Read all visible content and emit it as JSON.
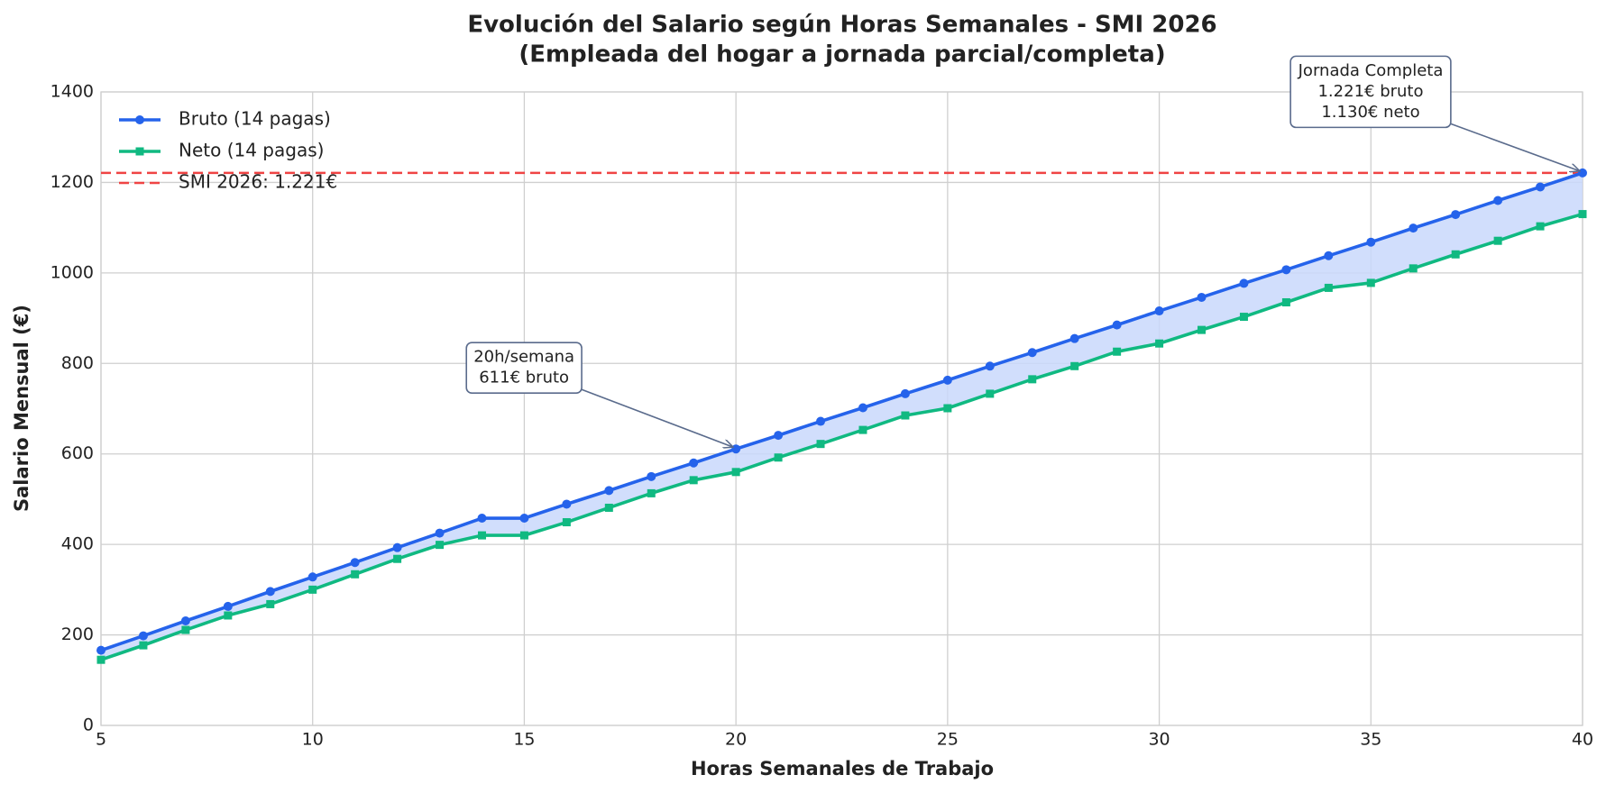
{
  "chart_data": {
    "type": "line",
    "title": "Evolución del Salario según Horas Semanales - SMI 2026",
    "subtitle": "(Empleada del hogar a jornada parcial/completa)",
    "x_label": "Horas Semanales de Trabajo",
    "y_label": "Salario Mensual (€)",
    "x": [
      5,
      6,
      7,
      8,
      9,
      10,
      11,
      12,
      13,
      14,
      15,
      16,
      17,
      18,
      19,
      20,
      21,
      22,
      23,
      24,
      25,
      26,
      27,
      28,
      29,
      30,
      31,
      32,
      33,
      34,
      35,
      36,
      37,
      38,
      39,
      40
    ],
    "series": [
      {
        "name": "Bruto (14 pagas)",
        "color": "#2563eb",
        "marker": "circle",
        "values": [
          166,
          198,
          231,
          263,
          296,
          328,
          360,
          393,
          425,
          458,
          458,
          489,
          519,
          550,
          580,
          611,
          641,
          672,
          702,
          733,
          763,
          794,
          824,
          855,
          885,
          916,
          946,
          977,
          1007,
          1038,
          1068,
          1099,
          1129,
          1160,
          1190,
          1221
        ]
      },
      {
        "name": "Neto (14 pagas)",
        "color": "#10b981",
        "marker": "square",
        "values": [
          145,
          177,
          211,
          243,
          268,
          300,
          334,
          368,
          399,
          420,
          420,
          449,
          481,
          513,
          542,
          560,
          592,
          622,
          653,
          685,
          701,
          733,
          765,
          794,
          826,
          844,
          874,
          903,
          935,
          967,
          978,
          1010,
          1041,
          1071,
          1103,
          1130
        ]
      }
    ],
    "fill_between_color": "#c9d8fb",
    "hlines": [
      {
        "name": "SMI 2026: 1.221€",
        "value": 1221,
        "color": "#ef4444"
      }
    ],
    "annotations": [
      {
        "lines": [
          "20h/semana",
          "611€ bruto"
        ],
        "x": 20,
        "y": 611
      },
      {
        "lines": [
          "Jornada Completa",
          "1.221€ bruto",
          "1.130€ neto"
        ],
        "x": 40,
        "y": 1221
      }
    ],
    "xlim": [
      5,
      40
    ],
    "xticks": [
      5,
      10,
      15,
      20,
      25,
      30,
      35,
      40
    ],
    "ylim": [
      0,
      1400
    ],
    "yticks": [
      0,
      200,
      400,
      600,
      800,
      1000,
      1200,
      1400
    ],
    "grid": true,
    "legend": "upper left"
  }
}
